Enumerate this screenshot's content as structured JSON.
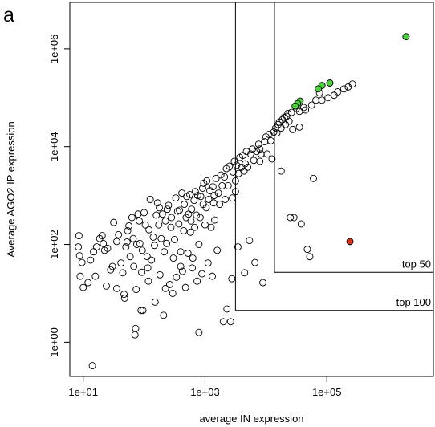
{
  "panel_label": "a",
  "chart_data": {
    "type": "scatter",
    "title": "",
    "xlabel": "average IN expression",
    "ylabel": "Average AGO2 IP expression",
    "xscale": "log10",
    "yscale": "log10",
    "xlim_log10": [
      0.78,
      6.75
    ],
    "ylim_log10": [
      -0.7,
      6.95
    ],
    "x_ticks": [
      {
        "value_log10": 1,
        "label": "1e+01"
      },
      {
        "value_log10": 3,
        "label": "1e+03"
      },
      {
        "value_log10": 5,
        "label": "1e+05"
      }
    ],
    "y_ticks": [
      {
        "value_log10": 0,
        "label": "1e+00"
      },
      {
        "value_log10": 2,
        "label": "1e+02"
      },
      {
        "value_log10": 4,
        "label": "1e+04"
      },
      {
        "value_log10": 6,
        "label": "1e+06"
      }
    ],
    "grid": false,
    "legend": "none",
    "marker_style": "open circle",
    "colors": {
      "default": "#000000",
      "highlight_green": "#4cd13c",
      "highlight_red": "#d6331f"
    },
    "threshold_boxes": [
      {
        "label": "top 100",
        "x_min_log10": 3.5,
        "y_min_log10": 0.65
      },
      {
        "label": "top 50",
        "x_min_log10": 4.14,
        "y_min_log10": 1.43
      }
    ],
    "highlighted_points": [
      {
        "x_log10": 6.3,
        "y_log10": 6.25,
        "color": "green"
      },
      {
        "x_log10": 5.05,
        "y_log10": 5.3,
        "color": "green"
      },
      {
        "x_log10": 4.92,
        "y_log10": 5.25,
        "color": "green"
      },
      {
        "x_log10": 4.86,
        "y_log10": 5.18,
        "color": "green"
      },
      {
        "x_log10": 4.56,
        "y_log10": 4.93,
        "color": "green"
      },
      {
        "x_log10": 4.52,
        "y_log10": 4.88,
        "color": "green"
      },
      {
        "x_log10": 4.48,
        "y_log10": 4.83,
        "color": "green"
      },
      {
        "x_log10": 5.38,
        "y_log10": 2.06,
        "color": "red"
      }
    ],
    "points_log10": [
      [
        0.92,
        1.95
      ],
      [
        0.93,
        2.18
      ],
      [
        0.94,
        1.77
      ],
      [
        0.95,
        1.35
      ],
      [
        0.98,
        1.63
      ],
      [
        1.0,
        1.12
      ],
      [
        1.08,
        1.22
      ],
      [
        1.12,
        1.68
      ],
      [
        1.15,
        -0.48
      ],
      [
        1.17,
        1.85
      ],
      [
        1.22,
        1.95
      ],
      [
        1.27,
        2.12
      ],
      [
        1.31,
        2.18
      ],
      [
        1.33,
        2.02
      ],
      [
        1.38,
        1.15
      ],
      [
        1.4,
        1.92
      ],
      [
        1.45,
        1.48
      ],
      [
        1.48,
        1.55
      ],
      [
        1.5,
        2.45
      ],
      [
        1.55,
        2.06
      ],
      [
        1.58,
        2.2
      ],
      [
        1.62,
        1.62
      ],
      [
        1.65,
        1.42
      ],
      [
        1.67,
        0.98
      ],
      [
        1.68,
        0.9
      ],
      [
        1.7,
        1.95
      ],
      [
        1.73,
        2.28
      ],
      [
        1.75,
        2.38
      ],
      [
        1.77,
        1.75
      ],
      [
        1.8,
        2.55
      ],
      [
        1.82,
        2.12
      ],
      [
        1.83,
        1.55
      ],
      [
        1.85,
        0.15
      ],
      [
        1.86,
        0.28
      ],
      [
        1.87,
        1.08
      ],
      [
        1.88,
        2.0
      ],
      [
        1.9,
        2.62
      ],
      [
        1.92,
        2.48
      ],
      [
        1.93,
        2.02
      ],
      [
        1.95,
        0.65
      ],
      [
        1.96,
        1.43
      ],
      [
        1.97,
        1.88
      ],
      [
        1.98,
        0.65
      ],
      [
        2.0,
        2.65
      ],
      [
        2.02,
        2.4
      ],
      [
        2.05,
        1.75
      ],
      [
        2.07,
        1.25
      ],
      [
        2.08,
        2.3
      ],
      [
        2.1,
        2.92
      ],
      [
        2.12,
        1.68
      ],
      [
        2.15,
        2.15
      ],
      [
        2.17,
        1.98
      ],
      [
        2.18,
        0.82
      ],
      [
        2.2,
        2.6
      ],
      [
        2.22,
        2.85
      ],
      [
        2.24,
        2.4
      ],
      [
        2.26,
        1.38
      ],
      [
        2.28,
        2.12
      ],
      [
        2.3,
        2.62
      ],
      [
        2.32,
        0.55
      ],
      [
        2.33,
        1.85
      ],
      [
        2.35,
        2.48
      ],
      [
        2.37,
        2.02
      ],
      [
        2.38,
        2.72
      ],
      [
        2.4,
        2.8
      ],
      [
        2.42,
        1.18
      ],
      [
        2.44,
        2.35
      ],
      [
        2.45,
        2.55
      ],
      [
        2.47,
        1.0
      ],
      [
        2.48,
        1.72
      ],
      [
        2.5,
        2.1
      ],
      [
        2.52,
        2.95
      ],
      [
        2.53,
        1.33
      ],
      [
        2.55,
        2.68
      ],
      [
        2.57,
        2.42
      ],
      [
        2.58,
        2.7
      ],
      [
        2.6,
        1.85
      ],
      [
        2.62,
        3.05
      ],
      [
        2.63,
        1.45
      ],
      [
        2.65,
        2.28
      ],
      [
        2.66,
        2.82
      ],
      [
        2.68,
        1.12
      ],
      [
        2.69,
        2.55
      ],
      [
        2.7,
        2.98
      ],
      [
        2.72,
        1.82
      ],
      [
        2.73,
        2.62
      ],
      [
        2.75,
        3.02
      ],
      [
        2.76,
        2.25
      ],
      [
        2.78,
        2.72
      ],
      [
        2.79,
        1.52
      ],
      [
        2.8,
        1.72
      ],
      [
        2.82,
        2.9
      ],
      [
        2.83,
        2.35
      ],
      [
        2.84,
        3.08
      ],
      [
        2.86,
        2.6
      ],
      [
        2.87,
        1.25
      ],
      [
        2.88,
        3.0
      ],
      [
        2.9,
        0.2
      ],
      [
        2.92,
        2.55
      ],
      [
        2.93,
        2.98
      ],
      [
        2.95,
        1.4
      ],
      [
        2.96,
        3.15
      ],
      [
        2.97,
        2.82
      ],
      [
        2.98,
        3.25
      ],
      [
        3.0,
        2.4
      ],
      [
        3.02,
        2.75
      ],
      [
        3.03,
        3.3
      ],
      [
        3.05,
        1.62
      ],
      [
        3.06,
        2.92
      ],
      [
        3.08,
        3.1
      ],
      [
        3.1,
        2.35
      ],
      [
        3.12,
        1.35
      ],
      [
        3.13,
        3.18
      ],
      [
        3.14,
        2.85
      ],
      [
        3.16,
        2.5
      ],
      [
        3.18,
        3.35
      ],
      [
        3.2,
        1.88
      ],
      [
        3.22,
        3.05
      ],
      [
        3.24,
        2.82
      ],
      [
        3.26,
        3.42
      ],
      [
        3.28,
        3.2
      ],
      [
        3.3,
        0.42
      ],
      [
        3.32,
        3.38
      ],
      [
        3.33,
        2.92
      ],
      [
        3.35,
        3.55
      ],
      [
        3.36,
        0.68
      ],
      [
        3.38,
        3.2
      ],
      [
        3.4,
        3.6
      ],
      [
        3.42,
        0.42
      ],
      [
        3.44,
        1.3
      ],
      [
        3.46,
        3.48
      ],
      [
        3.48,
        3.7
      ],
      [
        3.5,
        3.3
      ],
      [
        3.52,
        3.62
      ],
      [
        3.54,
        1.95
      ],
      [
        3.55,
        3.45
      ],
      [
        3.57,
        3.78
      ],
      [
        3.6,
        3.58
      ],
      [
        3.62,
        3.82
      ],
      [
        3.64,
        3.5
      ],
      [
        3.66,
        3.65
      ],
      [
        3.68,
        3.9
      ],
      [
        3.7,
        3.58
      ],
      [
        3.73,
        2.08
      ],
      [
        3.75,
        3.85
      ],
      [
        3.78,
        3.95
      ],
      [
        3.8,
        3.72
      ],
      [
        3.82,
        1.63
      ],
      [
        3.85,
        3.9
      ],
      [
        3.88,
        4.05
      ],
      [
        3.9,
        3.95
      ],
      [
        3.92,
        3.85
      ],
      [
        3.95,
        1.22
      ],
      [
        3.98,
        4.1
      ],
      [
        4.0,
        4.2
      ],
      [
        4.02,
        3.85
      ],
      [
        4.05,
        4.25
      ],
      [
        4.08,
        4.12
      ],
      [
        4.1,
        3.75
      ],
      [
        4.13,
        4.3
      ],
      [
        4.16,
        4.38
      ],
      [
        4.18,
        4.28
      ],
      [
        4.2,
        4.45
      ],
      [
        4.22,
        4.5
      ],
      [
        4.25,
        4.38
      ],
      [
        4.27,
        4.55
      ],
      [
        4.3,
        4.6
      ],
      [
        4.32,
        4.45
      ],
      [
        4.34,
        4.62
      ],
      [
        4.36,
        4.68
      ],
      [
        4.38,
        4.52
      ],
      [
        4.4,
        2.55
      ],
      [
        4.42,
        4.7
      ],
      [
        4.44,
        4.35
      ],
      [
        4.46,
        2.55
      ],
      [
        4.5,
        4.78
      ],
      [
        4.55,
        4.72
      ],
      [
        4.58,
        2.42
      ],
      [
        4.62,
        4.8
      ],
      [
        4.65,
        4.75
      ],
      [
        4.68,
        1.9
      ],
      [
        4.72,
        1.75
      ],
      [
        4.75,
        4.85
      ],
      [
        4.78,
        3.35
      ],
      [
        4.82,
        4.95
      ],
      [
        4.88,
        5.1
      ],
      [
        4.92,
        4.95
      ],
      [
        5.02,
        5.0
      ],
      [
        5.12,
        5.05
      ],
      [
        5.18,
        5.12
      ],
      [
        5.28,
        5.18
      ],
      [
        5.35,
        5.22
      ],
      [
        5.42,
        5.28
      ],
      [
        1.2,
        1.35
      ],
      [
        1.55,
        1.1
      ],
      [
        1.72,
        2.05
      ],
      [
        2.06,
        1.52
      ],
      [
        2.35,
        1.1
      ],
      [
        2.6,
        1.55
      ],
      [
        2.77,
        2.48
      ],
      [
        3.15,
        3.0
      ],
      [
        3.45,
        2.95
      ],
      [
        3.65,
        1.42
      ],
      [
        3.9,
        3.7
      ],
      [
        4.25,
        3.5
      ],
      [
        4.55,
        4.4
      ],
      [
        1.35,
        1.88
      ],
      [
        2.25,
        2.75
      ],
      [
        2.9,
        2.0
      ],
      [
        3.5,
        3.08
      ]
    ]
  }
}
